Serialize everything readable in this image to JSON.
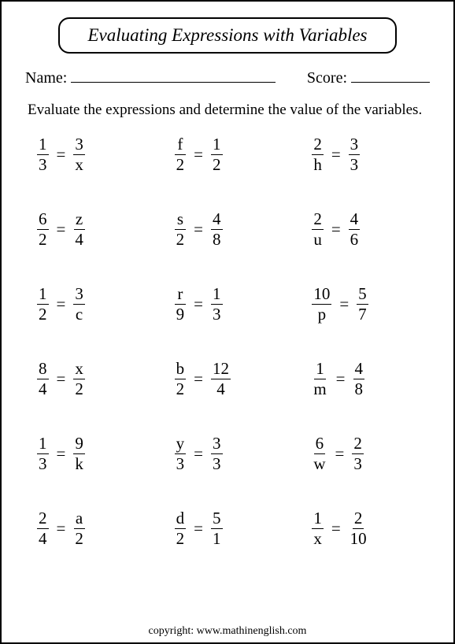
{
  "title": "Evaluating Expressions with Variables",
  "name_label": "Name:",
  "score_label": "Score:",
  "instructions": "Evaluate the expressions and determine the value of the variables.",
  "problems": [
    {
      "l_num": "1",
      "l_den": "3",
      "r_num": "3",
      "r_den": "x"
    },
    {
      "l_num": "f",
      "l_den": "2",
      "r_num": "1",
      "r_den": "2"
    },
    {
      "l_num": "2",
      "l_den": "h",
      "r_num": "3",
      "r_den": "3"
    },
    {
      "l_num": "6",
      "l_den": "2",
      "r_num": "z",
      "r_den": "4"
    },
    {
      "l_num": "s",
      "l_den": "2",
      "r_num": "4",
      "r_den": "8"
    },
    {
      "l_num": "2",
      "l_den": "u",
      "r_num": "4",
      "r_den": "6"
    },
    {
      "l_num": "1",
      "l_den": "2",
      "r_num": "3",
      "r_den": "c"
    },
    {
      "l_num": "r",
      "l_den": "9",
      "r_num": "1",
      "r_den": "3"
    },
    {
      "l_num": "10",
      "l_den": "p",
      "r_num": "5",
      "r_den": "7"
    },
    {
      "l_num": "8",
      "l_den": "4",
      "r_num": "x",
      "r_den": "2"
    },
    {
      "l_num": "b",
      "l_den": "2",
      "r_num": "12",
      "r_den": "4"
    },
    {
      "l_num": "1",
      "l_den": "m",
      "r_num": "4",
      "r_den": "8"
    },
    {
      "l_num": "1",
      "l_den": "3",
      "r_num": "9",
      "r_den": "k"
    },
    {
      "l_num": "y",
      "l_den": "3",
      "r_num": "3",
      "r_den": "3"
    },
    {
      "l_num": "6",
      "l_den": "w",
      "r_num": "2",
      "r_den": "3"
    },
    {
      "l_num": "2",
      "l_den": "4",
      "r_num": "a",
      "r_den": "2"
    },
    {
      "l_num": "d",
      "l_den": "2",
      "r_num": "5",
      "r_den": "1"
    },
    {
      "l_num": "1",
      "l_den": "x",
      "r_num": "2",
      "r_den": "10"
    }
  ],
  "copyright": "copyright:   www.mathinenglish.com",
  "colors": {
    "border": "#000000",
    "background": "#ffffff",
    "text": "#000000"
  },
  "typography": {
    "title_fontsize": 23,
    "body_fontsize": 19,
    "problem_fontsize": 21,
    "font_family": "Times New Roman"
  },
  "layout": {
    "columns": 3,
    "rows": 6
  }
}
